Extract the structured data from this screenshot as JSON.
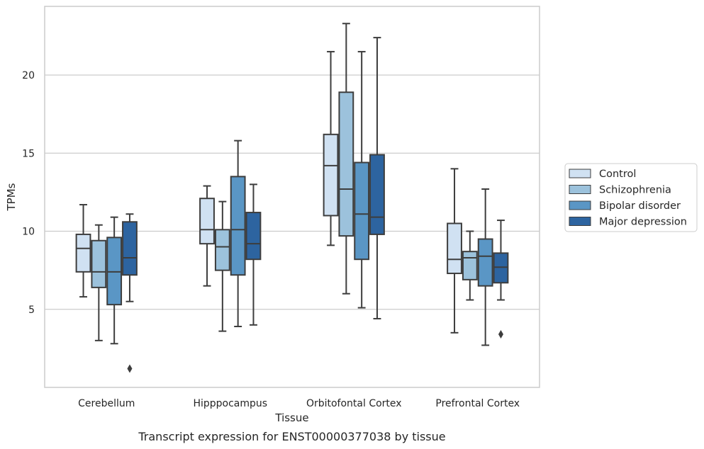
{
  "chart_data": {
    "type": "box",
    "xlabel": "Tissue",
    "ylabel": "TPMs",
    "caption": "Transcript expression for ENST00000377038 by tissue",
    "ylim": [
      0,
      24.4
    ],
    "yticks": [
      5,
      10,
      15,
      20
    ],
    "grid": true,
    "legend_position": "right",
    "categories": [
      "Cerebellum",
      "Hipppocampus",
      "Orbitofontal Cortex",
      "Prefrontal Cortex"
    ],
    "series": [
      {
        "name": "Control",
        "color": "#d0e1f2",
        "boxes": [
          {
            "whislo": 5.8,
            "q1": 7.4,
            "med": 8.9,
            "q3": 9.8,
            "whishi": 11.7,
            "fliers": []
          },
          {
            "whislo": 6.5,
            "q1": 9.2,
            "med": 10.1,
            "q3": 12.1,
            "whishi": 12.9,
            "fliers": []
          },
          {
            "whislo": 9.1,
            "q1": 11.0,
            "med": 14.2,
            "q3": 16.2,
            "whishi": 21.5,
            "fliers": []
          },
          {
            "whislo": 3.5,
            "q1": 7.3,
            "med": 8.2,
            "q3": 10.5,
            "whishi": 14.0,
            "fliers": []
          }
        ]
      },
      {
        "name": "Schizophrenia",
        "color": "#9cc2dc",
        "boxes": [
          {
            "whislo": 3.0,
            "q1": 6.4,
            "med": 7.4,
            "q3": 9.4,
            "whishi": 10.4,
            "fliers": []
          },
          {
            "whislo": 3.6,
            "q1": 7.5,
            "med": 9.0,
            "q3": 10.1,
            "whishi": 11.9,
            "fliers": []
          },
          {
            "whislo": 6.0,
            "q1": 9.7,
            "med": 12.7,
            "q3": 18.9,
            "whishi": 23.3,
            "fliers": []
          },
          {
            "whislo": 5.6,
            "q1": 6.9,
            "med": 8.3,
            "q3": 8.7,
            "whishi": 10.0,
            "fliers": []
          }
        ]
      },
      {
        "name": "Bipolar disorder",
        "color": "#5a96c5",
        "boxes": [
          {
            "whislo": 2.8,
            "q1": 5.3,
            "med": 7.4,
            "q3": 9.6,
            "whishi": 10.9,
            "fliers": []
          },
          {
            "whislo": 3.9,
            "q1": 7.2,
            "med": 10.1,
            "q3": 13.5,
            "whishi": 15.8,
            "fliers": []
          },
          {
            "whislo": 5.1,
            "q1": 8.2,
            "med": 11.1,
            "q3": 14.4,
            "whishi": 21.5,
            "fliers": []
          },
          {
            "whislo": 2.7,
            "q1": 6.5,
            "med": 8.4,
            "q3": 9.5,
            "whishi": 12.7,
            "fliers": []
          }
        ]
      },
      {
        "name": "Major depression",
        "color": "#2d64a0",
        "boxes": [
          {
            "whislo": 5.5,
            "q1": 7.2,
            "med": 8.3,
            "q3": 10.6,
            "whishi": 11.1,
            "fliers": [
              1.2
            ]
          },
          {
            "whislo": 4.0,
            "q1": 8.2,
            "med": 9.2,
            "q3": 11.2,
            "whishi": 13.0,
            "fliers": []
          },
          {
            "whislo": 4.4,
            "q1": 9.8,
            "med": 10.9,
            "q3": 14.9,
            "whishi": 22.4,
            "fliers": []
          },
          {
            "whislo": 5.6,
            "q1": 6.7,
            "med": 7.7,
            "q3": 8.6,
            "whishi": 10.7,
            "fliers": [
              3.4
            ]
          }
        ]
      }
    ]
  }
}
